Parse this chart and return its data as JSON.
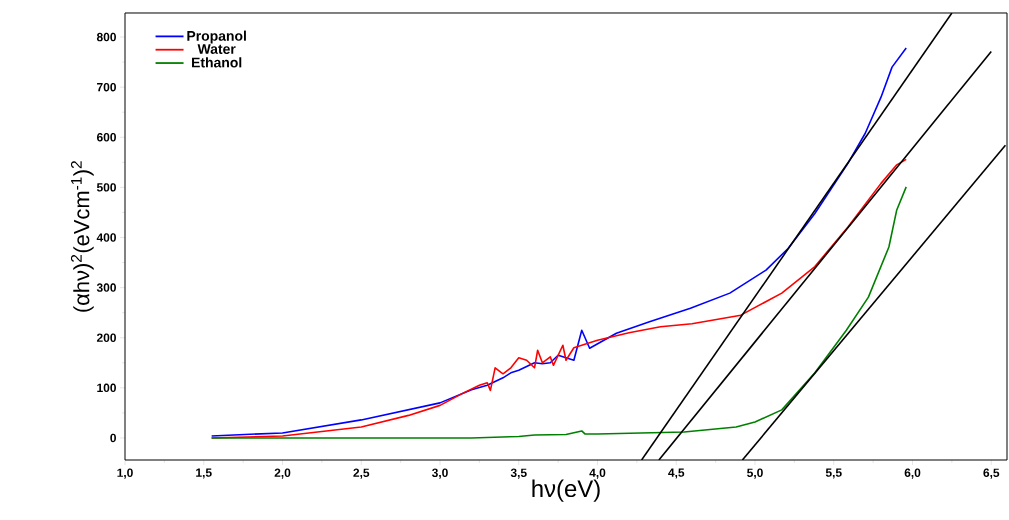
{
  "chart_data": {
    "type": "line",
    "xlabel": "hν(eV)",
    "ylabel": "(αhν)$^{2}$(eVcm$^{-1}$)$^{2}$",
    "xlim": [
      1.0,
      6.6
    ],
    "ylim": [
      -44,
      848
    ],
    "xticks": [
      {
        "value": 1.0,
        "label": "1,0"
      },
      {
        "value": 1.5,
        "label": "1,5"
      },
      {
        "value": 2.0,
        "label": "2,0"
      },
      {
        "value": 2.5,
        "label": "2,5"
      },
      {
        "value": 3.0,
        "label": "3,0"
      },
      {
        "value": 3.5,
        "label": "3,5"
      },
      {
        "value": 4.0,
        "label": "4,0"
      },
      {
        "value": 4.5,
        "label": "4,5"
      },
      {
        "value": 5.0,
        "label": "5,0"
      },
      {
        "value": 5.5,
        "label": "5,5"
      },
      {
        "value": 6.0,
        "label": "6,0"
      },
      {
        "value": 6.5,
        "label": "6,5"
      }
    ],
    "yticks": [
      0,
      100,
      200,
      300,
      400,
      500,
      600,
      700,
      800
    ],
    "legend": "top left",
    "series": [
      {
        "name": "Propanol",
        "color": "#0000ff",
        "x": [
          1.55,
          2.0,
          2.5,
          3.0,
          3.2,
          3.3,
          3.4,
          3.45,
          3.5,
          3.6,
          3.65,
          3.7,
          3.75,
          3.8,
          3.85,
          3.9,
          3.95,
          4.12,
          4.33,
          4.59,
          4.84,
          5.07,
          5.21,
          5.38,
          5.59,
          5.7,
          5.8,
          5.87,
          5.96
        ],
        "values": [
          4,
          10,
          36,
          70,
          96,
          105,
          120,
          130,
          135,
          150,
          148,
          150,
          165,
          160,
          155,
          215,
          179,
          209,
          232,
          259,
          289,
          335,
          378,
          448,
          548,
          608,
          680,
          740,
          778
        ]
      },
      {
        "name": "Water",
        "color": "#ff0000",
        "x": [
          1.55,
          2.0,
          2.5,
          2.8,
          3.0,
          3.15,
          3.25,
          3.3,
          3.32,
          3.35,
          3.4,
          3.45,
          3.5,
          3.55,
          3.6,
          3.62,
          3.65,
          3.7,
          3.72,
          3.78,
          3.8,
          3.85,
          3.9,
          4.0,
          4.2,
          4.4,
          4.6,
          4.91,
          5.17,
          5.38,
          5.59,
          5.8,
          5.9,
          5.96
        ],
        "values": [
          0,
          4,
          22,
          45,
          65,
          90,
          105,
          110,
          95,
          140,
          128,
          140,
          160,
          155,
          140,
          175,
          150,
          162,
          145,
          185,
          155,
          180,
          185,
          195,
          210,
          222,
          228,
          245,
          289,
          342,
          421,
          508,
          545,
          556
        ]
      },
      {
        "name": "Ethanol",
        "color": "#008000",
        "x": [
          1.55,
          2.5,
          3.2,
          3.5,
          3.6,
          3.8,
          3.9,
          3.92,
          4.0,
          4.55,
          4.88,
          5.0,
          5.17,
          5.38,
          5.58,
          5.72,
          5.85,
          5.9,
          5.96
        ],
        "values": [
          0,
          0,
          0,
          3,
          6,
          7,
          14,
          8,
          8,
          12,
          22,
          32,
          56,
          130,
          215,
          281,
          381,
          455,
          501
        ]
      },
      {
        "type": "line",
        "color": "#000000",
        "x": [
          4.28,
          6.25
        ],
        "values": [
          -44,
          848
        ]
      },
      {
        "type": "line",
        "color": "#000000",
        "x": [
          4.39,
          6.5
        ],
        "values": [
          -44,
          771
        ]
      },
      {
        "type": "line",
        "color": "#000000",
        "x": [
          4.92,
          6.59
        ],
        "values": [
          -44,
          584
        ]
      }
    ]
  }
}
